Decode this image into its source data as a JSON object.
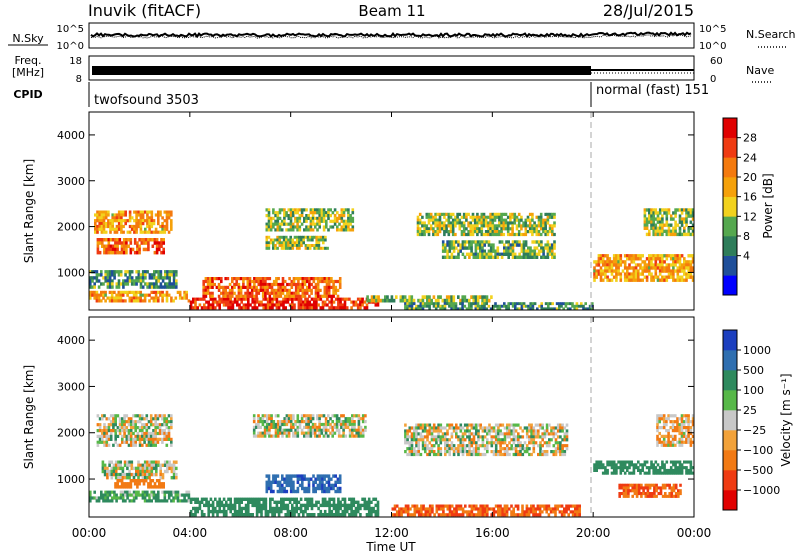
{
  "header": {
    "station": "Inuvik (fitACF)",
    "beam": "Beam 11",
    "date": "28/Jul/2015"
  },
  "left_labels": {
    "nsky": "N.Sky",
    "freq_line1": "Freq.",
    "freq_line2": "[MHz]",
    "cpid": "CPID"
  },
  "right_labels": {
    "nsearch": "N.Search",
    "nave": "Nave"
  },
  "noise_panel": {
    "left_ticks": [
      "10^5",
      "10^0"
    ],
    "right_ticks": [
      "10^5",
      "10^0"
    ]
  },
  "freq_panel": {
    "left_ticks": [
      "18",
      "8"
    ],
    "right_ticks": [
      "60",
      "0"
    ]
  },
  "cpid_panel": {
    "modes": [
      {
        "name": "twofsound 3503",
        "start_hour": 0.0
      },
      {
        "name": "normal (fast) 151",
        "start_hour": 20.0
      }
    ]
  },
  "axes": {
    "ylabel": "Slant Range [km]",
    "xlabel": "Time UT",
    "yticks": [
      "4000",
      "3000",
      "2000",
      "1000"
    ],
    "xticks": [
      "00:00",
      "04:00",
      "08:00",
      "12:00",
      "16:00",
      "20:00",
      "00:00"
    ]
  },
  "power_colorbar": {
    "label": "Power [dB]",
    "ticks": [
      "28",
      "24",
      "20",
      "16",
      "12",
      "8",
      "4"
    ],
    "colors": [
      "#0000ff",
      "#1f4f9a",
      "#2e7d5a",
      "#55a84f",
      "#f2d21e",
      "#f5a10a",
      "#f47a0e",
      "#ef3b12",
      "#e00000"
    ]
  },
  "velocity_colorbar": {
    "label": "Velocity [m s⁻¹]",
    "ticks": [
      "1000",
      "500",
      "100",
      "25",
      "−25",
      "−100",
      "−500",
      "−1000"
    ],
    "colors": [
      "#1c3fbf",
      "#2f6fb0",
      "#2e8a5e",
      "#57b848",
      "#c8c8c8",
      "#f2a23a",
      "#f27a14",
      "#ef3b12",
      "#e00000"
    ]
  },
  "chart_data": {
    "type": "heatmap",
    "x_range_hours": [
      0,
      24
    ],
    "y_range_km": [
      180,
      4500
    ],
    "power_panel": {
      "patches": [
        {
          "t": [
            0.2,
            3.3
          ],
          "r": [
            1850,
            2350
          ],
          "power": 20
        },
        {
          "t": [
            0.3,
            3.0
          ],
          "r": [
            1400,
            1750
          ],
          "power": 24
        },
        {
          "t": [
            0.0,
            3.5
          ],
          "r": [
            650,
            1050
          ],
          "power": 10
        },
        {
          "t": [
            0.0,
            4.0
          ],
          "r": [
            350,
            600
          ],
          "power": 20
        },
        {
          "t": [
            4.0,
            11.5
          ],
          "r": [
            200,
            450
          ],
          "power": 28
        },
        {
          "t": [
            4.5,
            10.0
          ],
          "r": [
            450,
            900
          ],
          "power": 24
        },
        {
          "t": [
            7.0,
            10.5
          ],
          "r": [
            1900,
            2400
          ],
          "power": 14
        },
        {
          "t": [
            7.0,
            9.5
          ],
          "r": [
            1500,
            1800
          ],
          "power": 14
        },
        {
          "t": [
            11.0,
            16.0
          ],
          "r": [
            350,
            500
          ],
          "power": 14
        },
        {
          "t": [
            13.0,
            18.5
          ],
          "r": [
            1800,
            2300
          ],
          "power": 14
        },
        {
          "t": [
            14.0,
            18.5
          ],
          "r": [
            1300,
            1700
          ],
          "power": 12
        },
        {
          "t": [
            12.5,
            20.0
          ],
          "r": [
            180,
            350
          ],
          "power": 10
        },
        {
          "t": [
            20.0,
            24.0
          ],
          "r": [
            800,
            1400
          ],
          "power": 20
        },
        {
          "t": [
            22.0,
            24.0
          ],
          "r": [
            1800,
            2400
          ],
          "power": 14
        }
      ]
    },
    "velocity_panel": {
      "patches": [
        {
          "t": [
            0.3,
            3.3
          ],
          "r": [
            1700,
            2400
          ],
          "velocity": 0
        },
        {
          "t": [
            0.5,
            3.5
          ],
          "r": [
            1000,
            1400
          ],
          "velocity": 0
        },
        {
          "t": [
            1.0,
            3.0
          ],
          "r": [
            800,
            1000
          ],
          "velocity": -200
        },
        {
          "t": [
            0.0,
            4.0
          ],
          "r": [
            500,
            750
          ],
          "velocity": 100
        },
        {
          "t": [
            4.0,
            11.5
          ],
          "r": [
            200,
            600
          ],
          "velocity": 200
        },
        {
          "t": [
            7.0,
            10.0
          ],
          "r": [
            700,
            1100
          ],
          "velocity": 700
        },
        {
          "t": [
            6.5,
            11.0
          ],
          "r": [
            1900,
            2400
          ],
          "velocity": 0
        },
        {
          "t": [
            12.5,
            19.0
          ],
          "r": [
            1500,
            2200
          ],
          "velocity": 0
        },
        {
          "t": [
            12.0,
            19.5
          ],
          "r": [
            200,
            450
          ],
          "velocity": -300
        },
        {
          "t": [
            20.0,
            24.0
          ],
          "r": [
            1100,
            1400
          ],
          "velocity": 200
        },
        {
          "t": [
            21.0,
            23.5
          ],
          "r": [
            600,
            900
          ],
          "velocity": -300
        },
        {
          "t": [
            22.5,
            24.0
          ],
          "r": [
            1700,
            2400
          ],
          "velocity": -50
        }
      ]
    }
  }
}
